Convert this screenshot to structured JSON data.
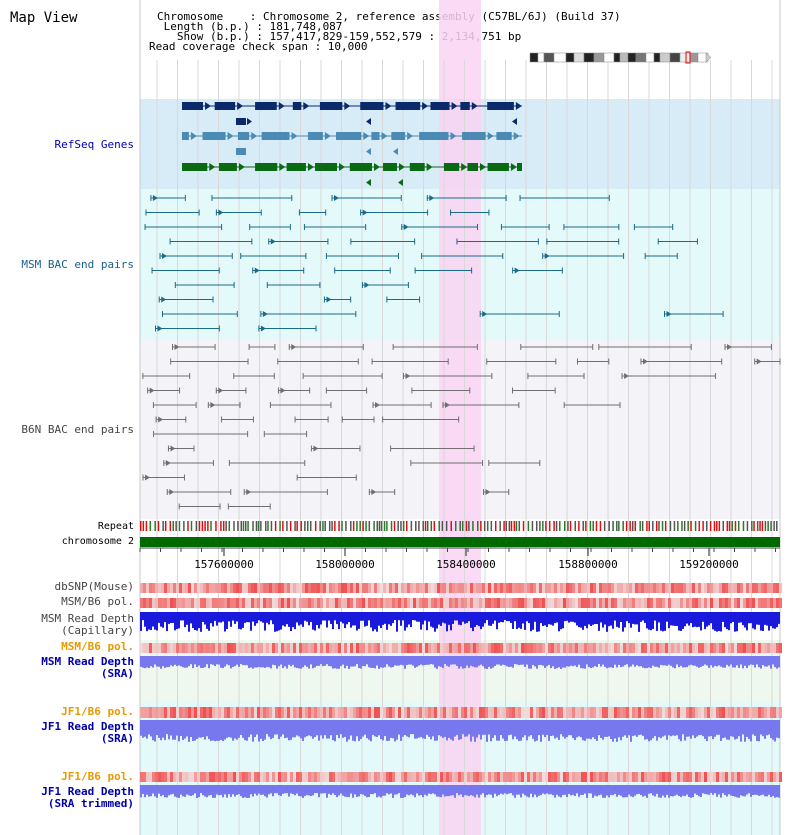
{
  "title": "Map View",
  "info": {
    "chromosome": "Chromosome    : Chromosome 2, reference assembly (C57BL/6J) (Build 37)",
    "length": " Length (b.p.) : 181,748,087",
    "show": "   Show (b.p.) : 157,417,829-159,552,579 : 2,134,751 bp",
    "coverage": "Read coverage check span : 10,000"
  },
  "tracks": {
    "refseq": "RefSeq Genes",
    "msm_bac": "MSM BAC end pairs",
    "b6n_bac": "B6N BAC end pairs",
    "repeat": "Repeat",
    "chromosome": "chromosome 2",
    "dbsnp": "dbSNP(Mouse)",
    "msm_b6_pol_1": "MSM/B6 pol.",
    "msm_read_depth_cap": "MSM Read Depth\n(Capillary)",
    "msm_b6_pol_2": "MSM/B6 pol.",
    "msm_read_depth_sra": "MSM Read Depth\n(SRA)",
    "jf1_b6_pol_1": "JF1/B6 pol.",
    "jf1_read_depth_sra": "JF1 Read Depth\n(SRA)",
    "jf1_b6_pol_2": "JF1/B6 pol.",
    "jf1_read_depth_trim": "JF1 Read Depth\n(SRA trimmed)"
  },
  "axis": {
    "ticks": [
      "157600000",
      "158000000",
      "158400000",
      "158800000",
      "159200000"
    ]
  },
  "colors": {
    "highlight": "#f9d3f2",
    "refseq_bg": "#d8ecf8",
    "msm_bg": "#e4fafa",
    "b6n_bg": "#f4f4f8",
    "gene_navy": "#0a2a6a",
    "gene_steel": "#4a8ab4",
    "gene_green": "#0a6a14",
    "msm_line": "#1a6a8a",
    "b6n_line": "#707070",
    "chrom_green": "#006a00",
    "depth_blue": "#1a1adc",
    "depth_light": "#7777ee"
  }
}
